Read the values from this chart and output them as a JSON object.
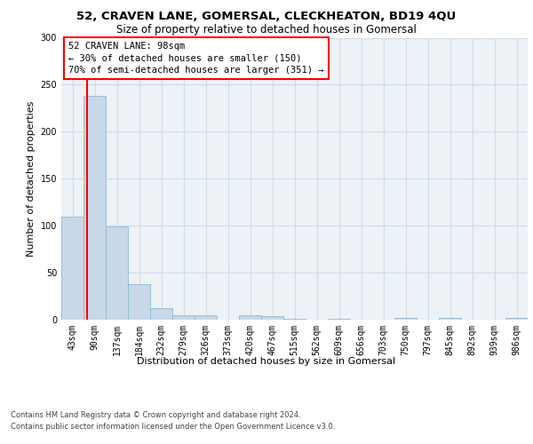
{
  "title1": "52, CRAVEN LANE, GOMERSAL, CLECKHEATON, BD19 4QU",
  "title2": "Size of property relative to detached houses in Gomersal",
  "xlabel": "Distribution of detached houses by size in Gomersal",
  "ylabel": "Number of detached properties",
  "footnote1": "Contains HM Land Registry data © Crown copyright and database right 2024.",
  "footnote2": "Contains public sector information licensed under the Open Government Licence v3.0.",
  "categories": [
    "43sqm",
    "90sqm",
    "137sqm",
    "184sqm",
    "232sqm",
    "279sqm",
    "326sqm",
    "373sqm",
    "420sqm",
    "467sqm",
    "515sqm",
    "562sqm",
    "609sqm",
    "656sqm",
    "703sqm",
    "750sqm",
    "797sqm",
    "845sqm",
    "892sqm",
    "939sqm",
    "986sqm"
  ],
  "values": [
    110,
    238,
    99,
    38,
    12,
    5,
    5,
    0,
    5,
    4,
    1,
    0,
    1,
    0,
    0,
    2,
    0,
    2,
    0,
    0,
    2
  ],
  "bar_color": "#c8d8e8",
  "bar_edge_color": "#8fb8d0",
  "grid_color": "#d0dce8",
  "annotation_text": "52 CRAVEN LANE: 98sqm\n← 30% of detached houses are smaller (150)\n70% of semi-detached houses are larger (351) →",
  "annotation_box_color": "white",
  "annotation_box_edge": "red",
  "property_line_color": "red",
  "ylim": [
    0,
    300
  ],
  "yticks": [
    0,
    50,
    100,
    150,
    200,
    250,
    300
  ],
  "background_color": "#edf2f7",
  "title1_fontsize": 9.5,
  "title2_fontsize": 8.5,
  "ylabel_fontsize": 8,
  "xlabel_fontsize": 8,
  "tick_fontsize": 7,
  "footnote_fontsize": 6,
  "annotation_fontsize": 7.5
}
